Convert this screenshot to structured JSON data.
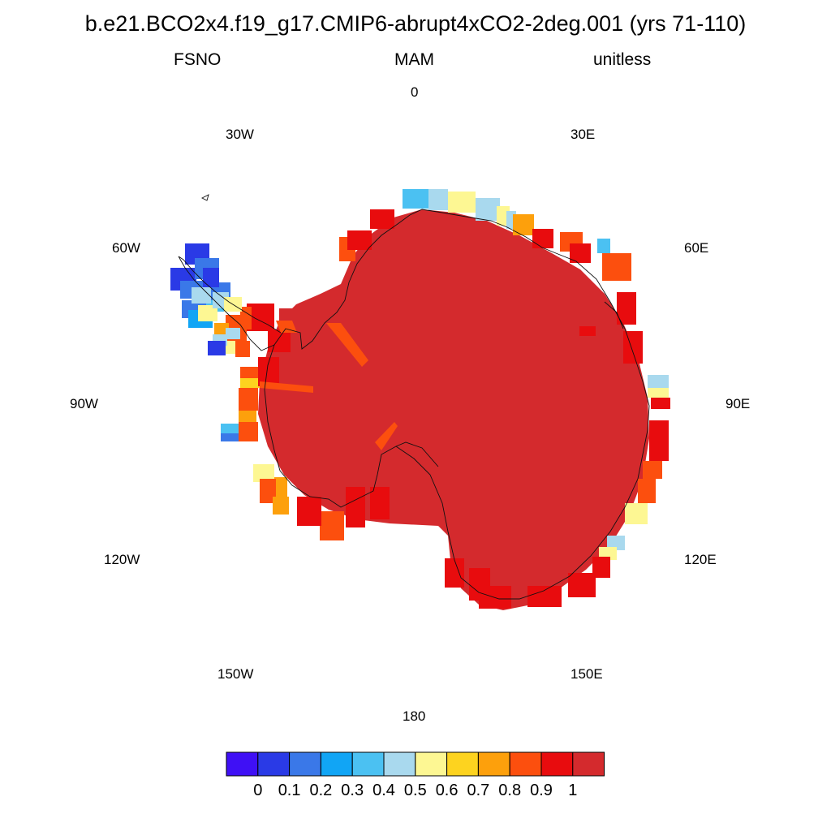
{
  "header": {
    "title": "b.e21.BCO2x4.f19_g17.CMIP6-abrupt4xCO2-2deg.001 (yrs 71-110)",
    "variable": "FSNO",
    "season": "MAM",
    "units": "unitless"
  },
  "map": {
    "projection": "south-polar-stereographic",
    "longitude_labels": [
      "0",
      "30E",
      "60E",
      "90E",
      "120E",
      "150E",
      "180",
      "150W",
      "120W",
      "90W",
      "60W",
      "30W"
    ]
  },
  "colorbar": {
    "colors": [
      "#3f10f5",
      "#2a3ae6",
      "#3a78e8",
      "#11a5f5",
      "#4bc1f2",
      "#a9d9ee",
      "#fdf793",
      "#fdd31f",
      "#fda00c",
      "#fc4f0e",
      "#e80c0e",
      "#d42a2d"
    ],
    "labels": [
      "0",
      "0.1",
      "0.2",
      "0.3",
      "0.4",
      "0.5",
      "0.6",
      "0.7",
      "0.8",
      "0.9",
      "1"
    ]
  },
  "chart_data": {
    "type": "heatmap",
    "title": "b.e21.BCO2x4.f19_g17.CMIP6-abrupt4xCO2-2deg.001 (yrs 71-110)",
    "variable": "FSNO",
    "season": "MAM",
    "units": "unitless",
    "region": "Antarctica (south polar projection)",
    "colorbar_levels": [
      0,
      0.1,
      0.2,
      0.3,
      0.4,
      0.5,
      0.6,
      0.7,
      0.8,
      0.9,
      1
    ],
    "value_range": [
      0,
      1
    ],
    "dominant_value": "> 1 (interior Antarctic ice sheet)",
    "edge_values_by_longitude": [
      {
        "lon": "0",
        "values": [
          0.4,
          0.5,
          0.95
        ]
      },
      {
        "lon": "30E",
        "values": [
          0.45,
          0.6,
          0.8,
          0.95
        ]
      },
      {
        "lon": "60E",
        "values": [
          0.4,
          0.85,
          0.95
        ]
      },
      {
        "lon": "90E",
        "values": [
          0.5,
          0.6,
          0.95
        ]
      },
      {
        "lon": "120E",
        "values": [
          0.5,
          0.6,
          0.75,
          0.9
        ]
      },
      {
        "lon": "150E",
        "values": [
          0.95,
          1
        ]
      },
      {
        "lon": "150W",
        "values": [
          0.9,
          0.95
        ]
      },
      {
        "lon": "120W",
        "values": [
          0.6,
          0.75,
          0.85,
          0.95
        ]
      },
      {
        "lon": "90W",
        "values": [
          0.35,
          0.7,
          0.85,
          0.95
        ]
      },
      {
        "lon": "60W",
        "values": [
          0.1,
          0.2,
          0.35,
          0.45,
          0.55,
          0.75,
          0.85
        ]
      }
    ]
  }
}
